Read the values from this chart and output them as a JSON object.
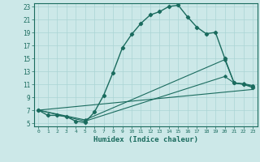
{
  "xlabel": "Humidex (Indice chaleur)",
  "bg_color": "#cce8e8",
  "line_color": "#1a6b5e",
  "grid_color": "#aad4d4",
  "xlim": [
    -0.5,
    23.5
  ],
  "ylim": [
    4.5,
    23.5
  ],
  "yticks": [
    5,
    7,
    9,
    11,
    13,
    15,
    17,
    19,
    21,
    23
  ],
  "xticks": [
    0,
    1,
    2,
    3,
    4,
    5,
    6,
    7,
    8,
    9,
    10,
    11,
    12,
    13,
    14,
    15,
    16,
    17,
    18,
    19,
    20,
    21,
    22,
    23
  ],
  "line1_x": [
    0,
    1,
    2,
    3,
    4,
    5,
    6,
    7,
    8,
    9,
    10,
    11,
    12,
    13,
    14,
    15,
    16,
    17,
    18,
    19,
    20,
    21,
    22,
    23
  ],
  "line1_y": [
    7.0,
    6.2,
    6.2,
    6.0,
    5.3,
    5.1,
    6.7,
    9.3,
    12.8,
    16.6,
    18.7,
    20.4,
    21.7,
    22.2,
    23.0,
    23.2,
    21.4,
    19.8,
    18.8,
    19.0,
    15.0,
    11.2,
    11.0,
    10.5
  ],
  "line2_x": [
    0,
    23
  ],
  "line2_y": [
    7.0,
    10.2
  ],
  "line3_x": [
    0,
    5,
    20,
    21,
    22,
    23
  ],
  "line3_y": [
    7.0,
    5.3,
    12.2,
    11.2,
    11.1,
    10.8
  ],
  "line4_x": [
    0,
    5,
    20,
    21,
    22,
    23
  ],
  "line4_y": [
    7.0,
    5.5,
    14.8,
    11.2,
    11.0,
    10.7
  ]
}
